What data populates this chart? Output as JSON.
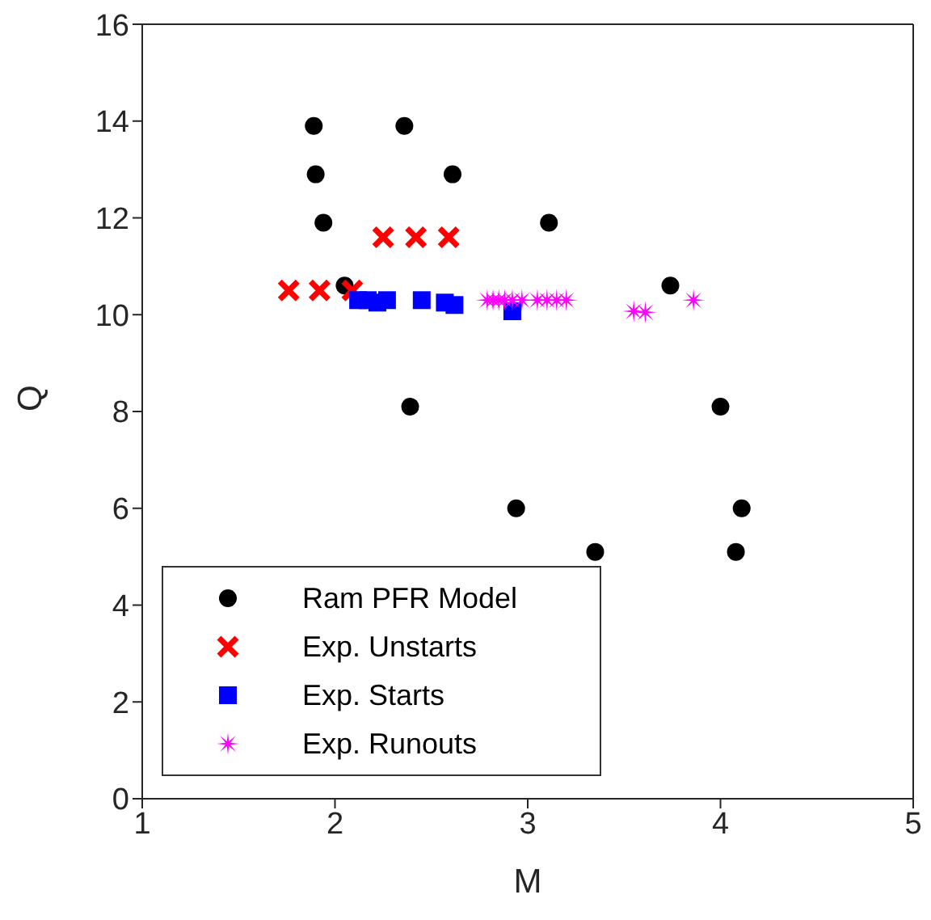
{
  "chart_data": {
    "type": "scatter",
    "xlabel": "M",
    "ylabel": "Q",
    "xlim": [
      1,
      5
    ],
    "xticks": [
      1,
      2,
      3,
      4,
      5
    ],
    "ylim": [
      0,
      16
    ],
    "yticks": [
      0,
      2,
      4,
      6,
      8,
      10,
      12,
      14,
      16
    ],
    "grid": false,
    "legend": "bottom left",
    "series": [
      {
        "name": "Ram PFR Model",
        "color": "#000000",
        "marker": "circle",
        "x": [
          1.89,
          1.9,
          1.94,
          2.05,
          2.36,
          2.61,
          2.39,
          2.94,
          3.11,
          3.35,
          3.74,
          4.0,
          4.11,
          4.08
        ],
        "values": [
          13.9,
          12.9,
          11.9,
          10.6,
          13.9,
          12.9,
          8.1,
          6.0,
          11.9,
          5.1,
          10.6,
          8.1,
          6.0,
          5.1
        ]
      },
      {
        "name": "Exp. Unstarts",
        "color": "#ff0000",
        "marker": "cross",
        "x": [
          1.76,
          1.92,
          2.09,
          2.25,
          2.42,
          2.59
        ],
        "values": [
          10.5,
          10.5,
          10.5,
          11.6,
          11.6,
          11.6
        ]
      },
      {
        "name": "Exp. Starts",
        "color": "#0000ff",
        "marker": "square",
        "x": [
          2.12,
          2.17,
          2.22,
          2.27,
          2.45,
          2.57,
          2.62,
          2.92
        ],
        "values": [
          10.3,
          10.3,
          10.25,
          10.3,
          10.3,
          10.25,
          10.2,
          10.07
        ]
      },
      {
        "name": "Exp. Runouts",
        "color": "#ff00ff",
        "marker": "star",
        "x": [
          2.79,
          2.82,
          2.85,
          2.88,
          2.92,
          2.97,
          3.05,
          3.1,
          3.15,
          3.2,
          3.55,
          3.61,
          3.86
        ],
        "values": [
          10.3,
          10.3,
          10.3,
          10.3,
          10.3,
          10.3,
          10.3,
          10.3,
          10.3,
          10.3,
          10.07,
          10.05,
          10.3
        ]
      }
    ]
  }
}
